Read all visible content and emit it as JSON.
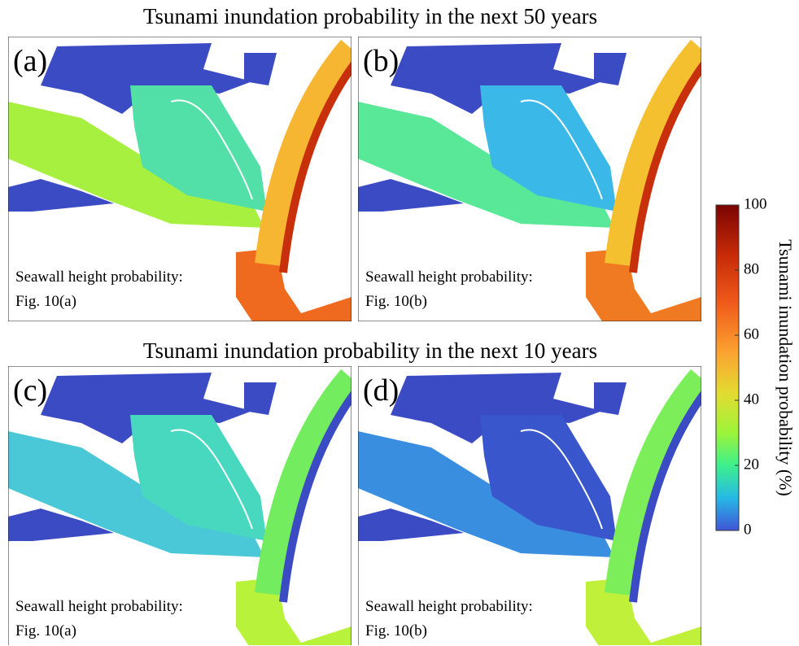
{
  "titles": [
    "Tsunami inundation probability in the next 50 years",
    "Tsunami inundation probability in the next 10 years"
  ],
  "panels": [
    {
      "label": "(a)",
      "note": [
        "Seawall height probability:",
        "Fig. 10(a)"
      ]
    },
    {
      "label": "(b)",
      "note": [
        "Seawall height probability:",
        "Fig. 10(b)"
      ]
    },
    {
      "label": "(c)",
      "note": [
        "Seawall height probability:",
        "Fig. 10(a)"
      ]
    },
    {
      "label": "(d)",
      "note": [
        "Seawall height probability:",
        "Fig. 10(b)"
      ]
    }
  ],
  "colorbar": {
    "label": "Tsunami inundation probability (%)",
    "lim": [
      0,
      100
    ],
    "ticks": [
      0,
      20,
      40,
      60,
      80,
      100
    ]
  }
}
